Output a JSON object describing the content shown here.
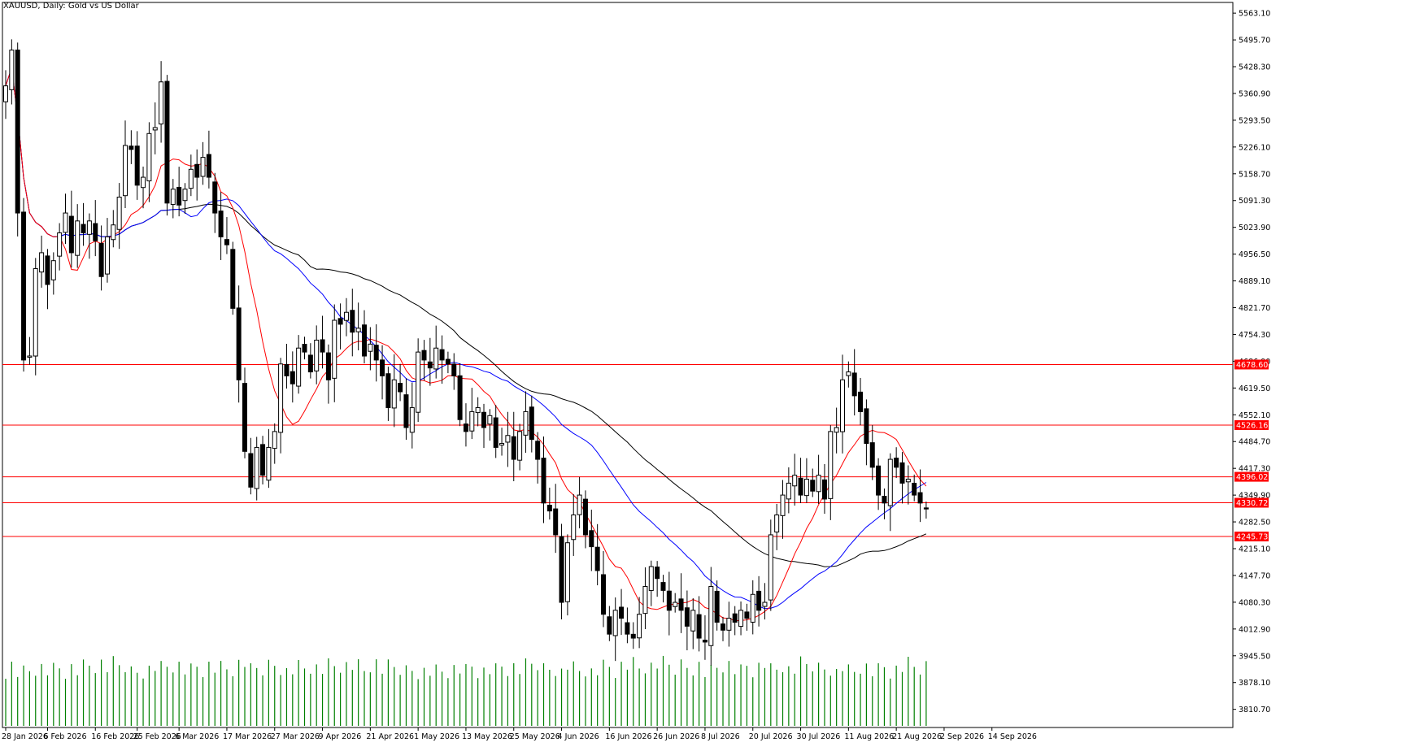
{
  "title": "XAUUSD, Daily:  Gold vs US Dollar",
  "chart_data": {
    "type": "candlestick",
    "symbol": "XAUUSD",
    "timeframe": "Daily",
    "description": "Gold vs US Dollar",
    "y_range": [
      3765,
      5590
    ],
    "y_ticks": [
      "5563.10",
      "5495.70",
      "5428.30",
      "5360.90",
      "5293.50",
      "5226.10",
      "5158.70",
      "5091.30",
      "5023.90",
      "4956.50",
      "4889.10",
      "4821.70",
      "4754.30",
      "4686.90",
      "4619.50",
      "4552.10",
      "4484.70",
      "4417.30",
      "4349.90",
      "4282.50",
      "4215.10",
      "4147.70",
      "4080.30",
      "4012.90",
      "3945.50",
      "3878.10",
      "3810.70"
    ],
    "x_labels": [
      {
        "label": "28 Jan 2026",
        "index": 0
      },
      {
        "label": "6 Feb 2026",
        "index": 7
      },
      {
        "label": "16 Feb 2026",
        "index": 15
      },
      {
        "label": "25 Feb 2026",
        "index": 22
      },
      {
        "label": "6 Mar 2026",
        "index": 29
      },
      {
        "label": "17 Mar 2026",
        "index": 37
      },
      {
        "label": "27 Mar 2026",
        "index": 45
      },
      {
        "label": "9 Apr 2026",
        "index": 53
      },
      {
        "label": "21 Apr 2026",
        "index": 61
      },
      {
        "label": "1 May 2026",
        "index": 69
      },
      {
        "label": "13 May 2026",
        "index": 77
      },
      {
        "label": "25 May 2026",
        "index": 85
      },
      {
        "label": "4 Jun 2026",
        "index": 93
      },
      {
        "label": "16 Jun 2026",
        "index": 101
      },
      {
        "label": "26 Jun 2026",
        "index": 109
      },
      {
        "label": "8 Jul 2026",
        "index": 117
      },
      {
        "label": "20 Jul 2026",
        "index": 125
      },
      {
        "label": "30 Jul 2026",
        "index": 133
      },
      {
        "label": "11 Aug 2026",
        "index": 141
      },
      {
        "label": "21 Aug 2026",
        "index": 149
      },
      {
        "label": "2 Sep 2026",
        "index": 157
      },
      {
        "label": "14 Sep 2026",
        "index": 165
      }
    ],
    "levels": [
      {
        "value": 4678.6,
        "label": "4678.60",
        "color": "#ff0000"
      },
      {
        "value": 4526.16,
        "label": "4526.16",
        "color": "#ff0000"
      },
      {
        "value": 4396.02,
        "label": "4396.02",
        "color": "#ff0000"
      },
      {
        "value": 4330.72,
        "label": "4330.72",
        "color": "#ff0000"
      },
      {
        "value": 4245.73,
        "label": "4245.73",
        "color": "#ff0000"
      }
    ],
    "waypoints": [
      [
        0,
        5380
      ],
      [
        1,
        5470
      ],
      [
        2,
        5060
      ],
      [
        3,
        4690
      ],
      [
        4,
        4700
      ],
      [
        5,
        4920
      ],
      [
        6,
        4960
      ],
      [
        7,
        4880
      ],
      [
        8,
        4940
      ],
      [
        9,
        5010
      ],
      [
        10,
        5060
      ],
      [
        11,
        4960
      ],
      [
        12,
        5040
      ],
      [
        13,
        5010
      ],
      [
        14,
        5040
      ],
      [
        15,
        4990
      ],
      [
        16,
        4900
      ],
      [
        17,
        5000
      ],
      [
        18,
        5030
      ],
      [
        19,
        5100
      ],
      [
        20,
        5230
      ],
      [
        21,
        5220
      ],
      [
        22,
        5130
      ],
      [
        23,
        5150
      ],
      [
        24,
        5260
      ],
      [
        25,
        5275
      ],
      [
        26,
        5390
      ],
      [
        27,
        5085
      ],
      [
        28,
        5120
      ],
      [
        29,
        5080
      ],
      [
        30,
        5120
      ],
      [
        31,
        5170
      ],
      [
        32,
        5150
      ],
      [
        33,
        5200
      ],
      [
        34,
        5150
      ],
      [
        35,
        5060
      ],
      [
        36,
        5000
      ],
      [
        37,
        4980
      ],
      [
        38,
        4820
      ],
      [
        39,
        4640
      ],
      [
        40,
        4460
      ],
      [
        41,
        4370
      ],
      [
        42,
        4470
      ],
      [
        43,
        4400
      ],
      [
        44,
        4470
      ],
      [
        45,
        4510
      ],
      [
        46,
        4680
      ],
      [
        47,
        4650
      ],
      [
        48,
        4630
      ],
      [
        49,
        4720
      ],
      [
        50,
        4710
      ],
      [
        51,
        4660
      ],
      [
        52,
        4740
      ],
      [
        53,
        4710
      ],
      [
        54,
        4640
      ],
      [
        55,
        4790
      ],
      [
        56,
        4780
      ],
      [
        57,
        4810
      ],
      [
        58,
        4760
      ],
      [
        59,
        4770
      ],
      [
        60,
        4700
      ],
      [
        61,
        4730
      ],
      [
        62,
        4690
      ],
      [
        63,
        4650
      ],
      [
        64,
        4570
      ],
      [
        65,
        4640
      ],
      [
        66,
        4610
      ],
      [
        67,
        4520
      ],
      [
        68,
        4570
      ],
      [
        69,
        4710
      ],
      [
        70,
        4690
      ],
      [
        71,
        4670
      ],
      [
        72,
        4720
      ],
      [
        73,
        4690
      ],
      [
        74,
        4680
      ],
      [
        75,
        4650
      ],
      [
        76,
        4540
      ],
      [
        77,
        4510
      ],
      [
        78,
        4560
      ],
      [
        79,
        4570
      ],
      [
        80,
        4520
      ],
      [
        81,
        4550
      ],
      [
        82,
        4470
      ],
      [
        83,
        4480
      ],
      [
        84,
        4500
      ],
      [
        85,
        4440
      ],
      [
        86,
        4510
      ],
      [
        87,
        4560
      ],
      [
        88,
        4490
      ],
      [
        89,
        4440
      ],
      [
        90,
        4330
      ],
      [
        91,
        4310
      ],
      [
        92,
        4250
      ],
      [
        93,
        4080
      ],
      [
        94,
        4230
      ],
      [
        95,
        4300
      ],
      [
        96,
        4350
      ],
      [
        97,
        4250
      ],
      [
        98,
        4220
      ],
      [
        99,
        4160
      ],
      [
        100,
        4050
      ],
      [
        101,
        4000
      ],
      [
        102,
        4060
      ],
      [
        103,
        4040
      ],
      [
        104,
        4000
      ],
      [
        105,
        3990
      ],
      [
        106,
        4050
      ],
      [
        107,
        4120
      ],
      [
        108,
        4170
      ],
      [
        109,
        4140
      ],
      [
        110,
        4110
      ],
      [
        111,
        4060
      ],
      [
        112,
        4080
      ],
      [
        113,
        4060
      ],
      [
        114,
        4020
      ],
      [
        115,
        4060
      ],
      [
        116,
        3990
      ],
      [
        117,
        3980
      ],
      [
        118,
        4120
      ],
      [
        119,
        4030
      ],
      [
        120,
        4010
      ],
      [
        121,
        4040
      ],
      [
        122,
        4030
      ],
      [
        123,
        4060
      ],
      [
        124,
        4040
      ],
      [
        125,
        4100
      ],
      [
        126,
        4060
      ],
      [
        127,
        4080
      ],
      [
        128,
        4250
      ],
      [
        129,
        4300
      ],
      [
        130,
        4350
      ],
      [
        131,
        4380
      ],
      [
        132,
        4400
      ],
      [
        133,
        4350
      ],
      [
        134,
        4390
      ],
      [
        135,
        4360
      ],
      [
        136,
        4400
      ],
      [
        137,
        4340
      ],
      [
        138,
        4510
      ],
      [
        139,
        4520
      ],
      [
        140,
        4640
      ],
      [
        141,
        4660
      ],
      [
        142,
        4600
      ],
      [
        143,
        4560
      ],
      [
        144,
        4480
      ],
      [
        145,
        4420
      ],
      [
        146,
        4350
      ],
      [
        147,
        4330
      ],
      [
        148,
        4440
      ],
      [
        149,
        4420
      ],
      [
        150,
        4380
      ],
      [
        151,
        4390
      ],
      [
        152,
        4350
      ],
      [
        153,
        4330
      ],
      [
        154,
        4315
      ]
    ],
    "ma_red_label": "",
    "ma_blue_label": "",
    "ma_black_label": "",
    "volume_color": "#008000",
    "colors": {
      "ma_fast": "#ff0000",
      "ma_mid": "#0000ff",
      "ma_slow": "#000000",
      "candle": "#000000",
      "volume": "#008000",
      "level_line": "#ff0000"
    },
    "grid": false
  }
}
